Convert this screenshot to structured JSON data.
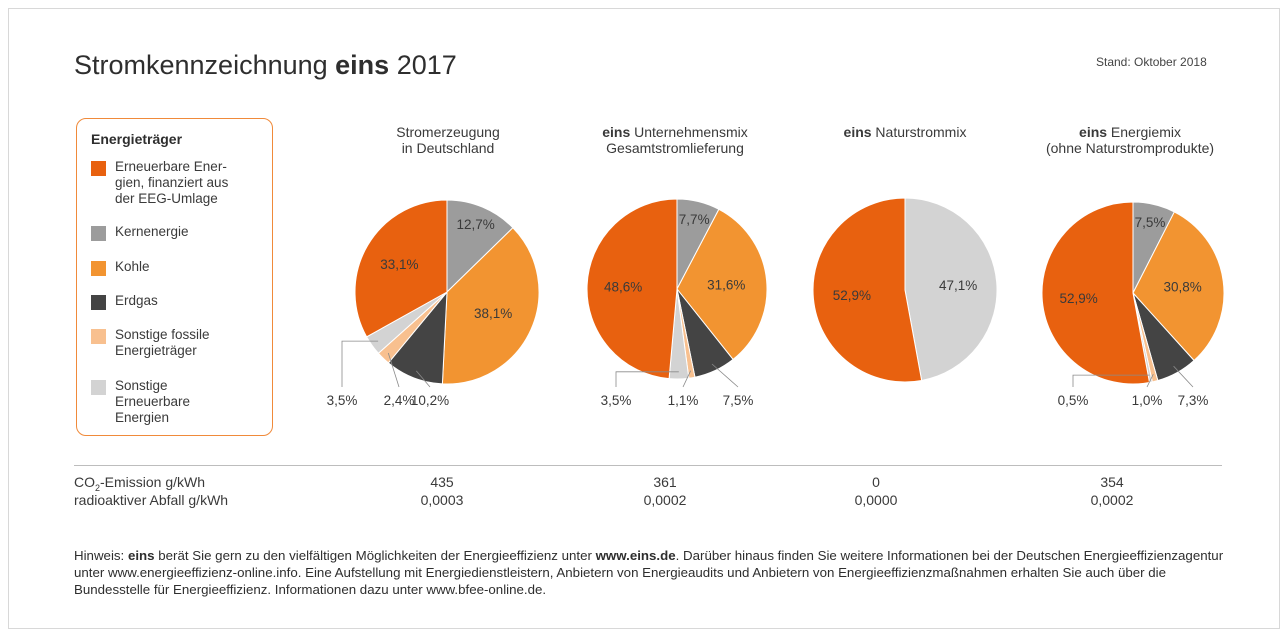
{
  "header": {
    "title_pre": "Stromkennzeichnung ",
    "title_bold": "eins",
    "title_post": " 2017",
    "stand": "Stand: Oktober 2018"
  },
  "legend": {
    "title": "Energieträger",
    "items": [
      {
        "label": "Erneuerbare Ener-\ngien, finanziert aus\nder EEG-Umlage",
        "color": "#e8610f"
      },
      {
        "label": "Kernenergie",
        "color": "#9c9c9c"
      },
      {
        "label": "Kohle",
        "color": "#f29431"
      },
      {
        "label": "Erdgas",
        "color": "#444444"
      },
      {
        "label": "Sonstige fossile\nEnergieträger",
        "color": "#f8c08f"
      },
      {
        "label": "Sonstige\nErneuerbare\nEnergien",
        "color": "#d3d3d3"
      }
    ]
  },
  "chart_titles": [
    {
      "bold": "",
      "line1": "Stromerzeugung",
      "line2": "in Deutschland"
    },
    {
      "bold": "eins",
      "line1": " Unternehmensmix",
      "line2": "Gesamtstromlieferung"
    },
    {
      "bold": "eins",
      "line1": " Naturstrommix",
      "line2": ""
    },
    {
      "bold": "eins",
      "line1": " Energiemix",
      "line2": "(ohne Naturstromprodukte)"
    }
  ],
  "chart_data": [
    {
      "type": "pie",
      "title": "Stromerzeugung in Deutschland",
      "slices": [
        {
          "category": "Kernenergie",
          "value": 12.7,
          "label": "12,7%"
        },
        {
          "category": "Kohle",
          "value": 38.1,
          "label": "38,1%"
        },
        {
          "category": "Erdgas",
          "value": 10.2,
          "label": "10,2%"
        },
        {
          "category": "Sonstige fossile Energieträger",
          "value": 2.4,
          "label": "2,4%"
        },
        {
          "category": "Sonstige Erneuerbare Energien",
          "value": 3.5,
          "label": "3,5%"
        },
        {
          "category": "Erneuerbare Energien, finanziert aus der EEG-Umlage",
          "value": 33.1,
          "label": "33,1%"
        }
      ]
    },
    {
      "type": "pie",
      "title": "eins Unternehmensmix Gesamtstromlieferung",
      "slices": [
        {
          "category": "Kernenergie",
          "value": 7.7,
          "label": "7,7%"
        },
        {
          "category": "Kohle",
          "value": 31.6,
          "label": "31,6%"
        },
        {
          "category": "Erdgas",
          "value": 7.5,
          "label": "7,5%"
        },
        {
          "category": "Sonstige fossile Energieträger",
          "value": 1.1,
          "label": "1,1%"
        },
        {
          "category": "Sonstige Erneuerbare Energien",
          "value": 3.5,
          "label": "3,5%"
        },
        {
          "category": "Erneuerbare Energien, finanziert aus der EEG-Umlage",
          "value": 48.6,
          "label": "48,6%"
        }
      ]
    },
    {
      "type": "pie",
      "title": "eins Naturstrommix",
      "slices": [
        {
          "category": "Sonstige Erneuerbare Energien",
          "value": 47.1,
          "label": "47,1%"
        },
        {
          "category": "Erneuerbare Energien, finanziert aus der EEG-Umlage",
          "value": 52.9,
          "label": "52,9%"
        }
      ]
    },
    {
      "type": "pie",
      "title": "eins Energiemix (ohne Naturstromprodukte)",
      "slices": [
        {
          "category": "Kernenergie",
          "value": 7.5,
          "label": "7,5%"
        },
        {
          "category": "Kohle",
          "value": 30.8,
          "label": "30,8%"
        },
        {
          "category": "Erdgas",
          "value": 7.3,
          "label": "7,3%"
        },
        {
          "category": "Sonstige fossile Energieträger",
          "value": 1.0,
          "label": "1,0%"
        },
        {
          "category": "Sonstige Erneuerbare Energien",
          "value": 0.5,
          "label": "0,5%"
        },
        {
          "category": "Erneuerbare Energien, finanziert aus der EEG-Umlage",
          "value": 52.9,
          "label": "52,9%"
        }
      ]
    }
  ],
  "emissions": {
    "co2_label_pre": "CO",
    "co2_label_sub": "2",
    "co2_label_post": "-Emission g/kWh",
    "waste_label": "radioaktiver Abfall g/kWh",
    "co2_values": [
      "435",
      "361",
      "0",
      "354"
    ],
    "waste_values": [
      "0,0003",
      "0,0002",
      "0,0000",
      "0,0002"
    ]
  },
  "note": {
    "p1": "Hinweis: ",
    "b1": "eins",
    "p2": " berät Sie gern zu den vielfältigen Möglichkeiten der Energieeffizienz unter ",
    "b2": "www.eins.de",
    "p3": ". Darüber hinaus finden Sie weitere Informationen bei der Deutschen Energieeffizienzagentur unter www.energieeffizienz-online.info. Eine Aufstellung mit Energiedienstleistern, Anbietern von Energieaudits und Anbietern von Energieeffizienzmaßnahmen erhalten Sie auch über die Bundesstelle für Energieeffizienz. Informationen dazu unter www.bfee-online.de."
  }
}
